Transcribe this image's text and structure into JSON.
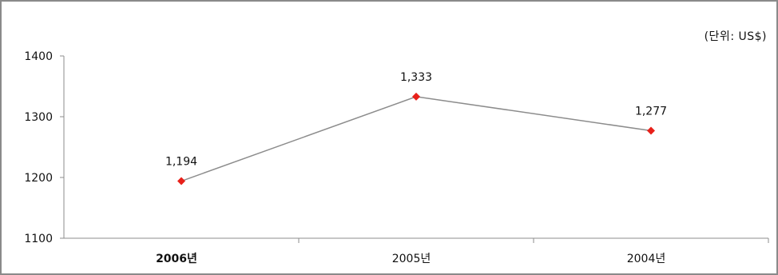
{
  "chart_data": {
    "type": "line",
    "unit_note": "(단위: US$)",
    "categories": [
      "2006년",
      "2005년",
      "2004년"
    ],
    "highlighted_category": "2006년",
    "values": [
      1194,
      1333,
      1277
    ],
    "data_labels": [
      "1,194",
      "1,333",
      "1,277"
    ],
    "ylim": [
      1100,
      1400
    ],
    "yticks": [
      1100,
      1200,
      1300,
      1400
    ],
    "ytick_labels": [
      "1100",
      "1200",
      "1300",
      "1400"
    ],
    "grid": false,
    "line_color": "#8c8c8c",
    "marker_color": "#e8201a",
    "marker_shape": "diamond"
  }
}
